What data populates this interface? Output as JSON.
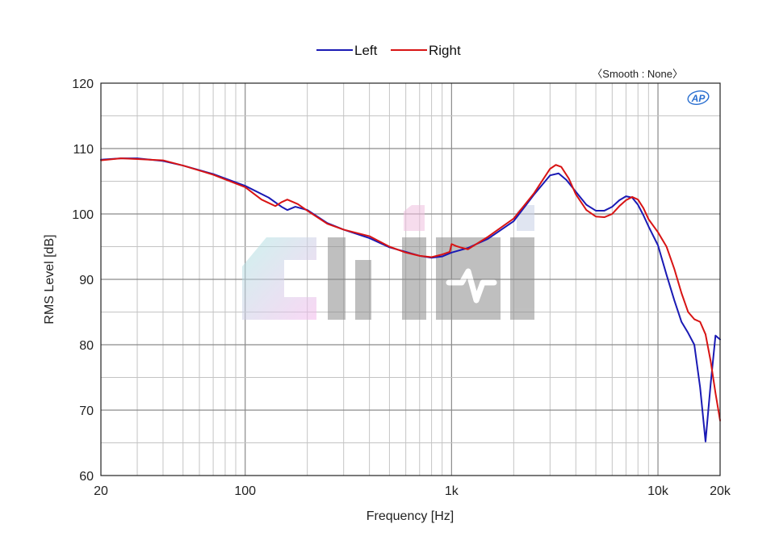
{
  "chart_data": {
    "type": "line",
    "xlabel": "Frequency [Hz]",
    "ylabel": "RMS Level [dB]",
    "smoothing_note": "〈Smooth : None〉",
    "brand_badge": "AP",
    "watermark_text": "CIHI",
    "x_scale": "log",
    "xlim": [
      20,
      20000
    ],
    "ylim": [
      60,
      120
    ],
    "grid": true,
    "legend_position": "top-center",
    "x_ticks": [
      {
        "value": 20,
        "label": "20"
      },
      {
        "value": 100,
        "label": "100"
      },
      {
        "value": 1000,
        "label": "1k"
      },
      {
        "value": 10000,
        "label": "10k"
      },
      {
        "value": 20000,
        "label": "20k"
      }
    ],
    "y_ticks": [
      {
        "value": 60,
        "label": "60"
      },
      {
        "value": 70,
        "label": "70"
      },
      {
        "value": 80,
        "label": "80"
      },
      {
        "value": 90,
        "label": "90"
      },
      {
        "value": 100,
        "label": "100"
      },
      {
        "value": 110,
        "label": "110"
      },
      {
        "value": 120,
        "label": "120"
      }
    ],
    "series": [
      {
        "name": "Left",
        "color": "#1a1ab4",
        "points": [
          [
            20,
            108.3
          ],
          [
            25,
            108.5
          ],
          [
            30,
            108.5
          ],
          [
            40,
            108.1
          ],
          [
            50,
            107.4
          ],
          [
            70,
            106.1
          ],
          [
            100,
            104.3
          ],
          [
            130,
            102.5
          ],
          [
            150,
            101.1
          ],
          [
            160,
            100.6
          ],
          [
            175,
            101.1
          ],
          [
            200,
            100.6
          ],
          [
            250,
            98.6
          ],
          [
            300,
            97.6
          ],
          [
            400,
            96.3
          ],
          [
            500,
            94.9
          ],
          [
            600,
            94.2
          ],
          [
            700,
            93.6
          ],
          [
            800,
            93.3
          ],
          [
            900,
            93.5
          ],
          [
            1000,
            94.1
          ],
          [
            1200,
            94.8
          ],
          [
            1500,
            96.2
          ],
          [
            2000,
            98.9
          ],
          [
            2500,
            102.9
          ],
          [
            3000,
            105.9
          ],
          [
            3300,
            106.2
          ],
          [
            3600,
            105.2
          ],
          [
            4000,
            103.4
          ],
          [
            4500,
            101.4
          ],
          [
            5000,
            100.5
          ],
          [
            5500,
            100.5
          ],
          [
            6000,
            101.1
          ],
          [
            6500,
            102.1
          ],
          [
            7000,
            102.7
          ],
          [
            7500,
            102.5
          ],
          [
            8000,
            101.4
          ],
          [
            8500,
            99.8
          ],
          [
            9000,
            98.1
          ],
          [
            10000,
            95.2
          ],
          [
            11000,
            90.7
          ],
          [
            12000,
            86.8
          ],
          [
            13000,
            83.5
          ],
          [
            14000,
            81.8
          ],
          [
            15000,
            80
          ],
          [
            16000,
            73.5
          ],
          [
            17000,
            65.2
          ],
          [
            18000,
            74
          ],
          [
            19000,
            81.4
          ],
          [
            20000,
            80.8
          ]
        ]
      },
      {
        "name": "Right",
        "color": "#d81414",
        "points": [
          [
            20,
            108.2
          ],
          [
            25,
            108.5
          ],
          [
            30,
            108.4
          ],
          [
            40,
            108.2
          ],
          [
            50,
            107.4
          ],
          [
            70,
            106
          ],
          [
            100,
            104.1
          ],
          [
            120,
            102.2
          ],
          [
            140,
            101.2
          ],
          [
            150,
            101.8
          ],
          [
            160,
            102.2
          ],
          [
            180,
            101.5
          ],
          [
            200,
            100.5
          ],
          [
            250,
            98.5
          ],
          [
            300,
            97.6
          ],
          [
            400,
            96.6
          ],
          [
            500,
            95
          ],
          [
            600,
            94.1
          ],
          [
            700,
            93.6
          ],
          [
            800,
            93.4
          ],
          [
            900,
            93.8
          ],
          [
            980,
            94.2
          ],
          [
            1000,
            95.4
          ],
          [
            1050,
            95.1
          ],
          [
            1100,
            94.9
          ],
          [
            1200,
            94.6
          ],
          [
            1500,
            96.5
          ],
          [
            2000,
            99.3
          ],
          [
            2500,
            103.1
          ],
          [
            3000,
            106.9
          ],
          [
            3200,
            107.5
          ],
          [
            3400,
            107.2
          ],
          [
            3700,
            105.4
          ],
          [
            4000,
            103
          ],
          [
            4500,
            100.6
          ],
          [
            5000,
            99.6
          ],
          [
            5500,
            99.5
          ],
          [
            6000,
            100
          ],
          [
            6500,
            101.2
          ],
          [
            7000,
            102.1
          ],
          [
            7500,
            102.6
          ],
          [
            8000,
            102.2
          ],
          [
            8500,
            100.9
          ],
          [
            9000,
            99.2
          ],
          [
            10000,
            97.2
          ],
          [
            11000,
            95
          ],
          [
            12000,
            91.6
          ],
          [
            13000,
            87.9
          ],
          [
            14000,
            85
          ],
          [
            15000,
            83.9
          ],
          [
            16000,
            83.5
          ],
          [
            17000,
            81.6
          ],
          [
            18000,
            77.5
          ],
          [
            19000,
            72.6
          ],
          [
            20000,
            68.4
          ]
        ]
      }
    ]
  }
}
